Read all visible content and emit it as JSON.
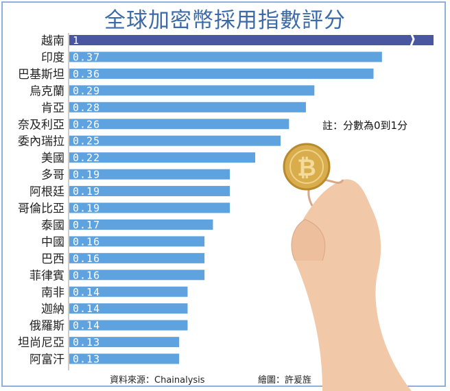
{
  "chart_data": {
    "type": "bar",
    "orientation": "horizontal",
    "title": "全球加密幣採用指數評分",
    "categories": [
      "越南",
      "印度",
      "巴基斯坦",
      "烏克蘭",
      "肯亞",
      "奈及利亞",
      "委內瑞拉",
      "美國",
      "多哥",
      "阿根廷",
      "哥倫比亞",
      "泰國",
      "中國",
      "巴西",
      "菲律賓",
      "南非",
      "迦納",
      "俄羅斯",
      "坦尚尼亞",
      "阿富汗"
    ],
    "values": [
      1,
      0.37,
      0.36,
      0.29,
      0.28,
      0.26,
      0.25,
      0.22,
      0.19,
      0.19,
      0.19,
      0.17,
      0.16,
      0.16,
      0.16,
      0.14,
      0.14,
      0.14,
      0.13,
      0.13
    ],
    "value_labels": [
      "1",
      "0.37",
      "0.36",
      "0.29",
      "0.28",
      "0.26",
      "0.25",
      "0.22",
      "0.19",
      "0.19",
      "0.19",
      "0.17",
      "0.16",
      "0.16",
      "0.16",
      "0.14",
      "0.14",
      "0.14",
      "0.13",
      "0.13"
    ],
    "axis_break_on_first_bar": true,
    "xlim": [
      0,
      0.43
    ],
    "grid": false,
    "colors": {
      "highlight": "#4a56a0",
      "bar": "#5ea3e0",
      "title": "#3c6aa6",
      "frame": "#8fb0d6"
    }
  },
  "note": "註：分數為0到1分",
  "source": "資料來源：Chainalysis",
  "credit": "繪圖：許爰旌"
}
